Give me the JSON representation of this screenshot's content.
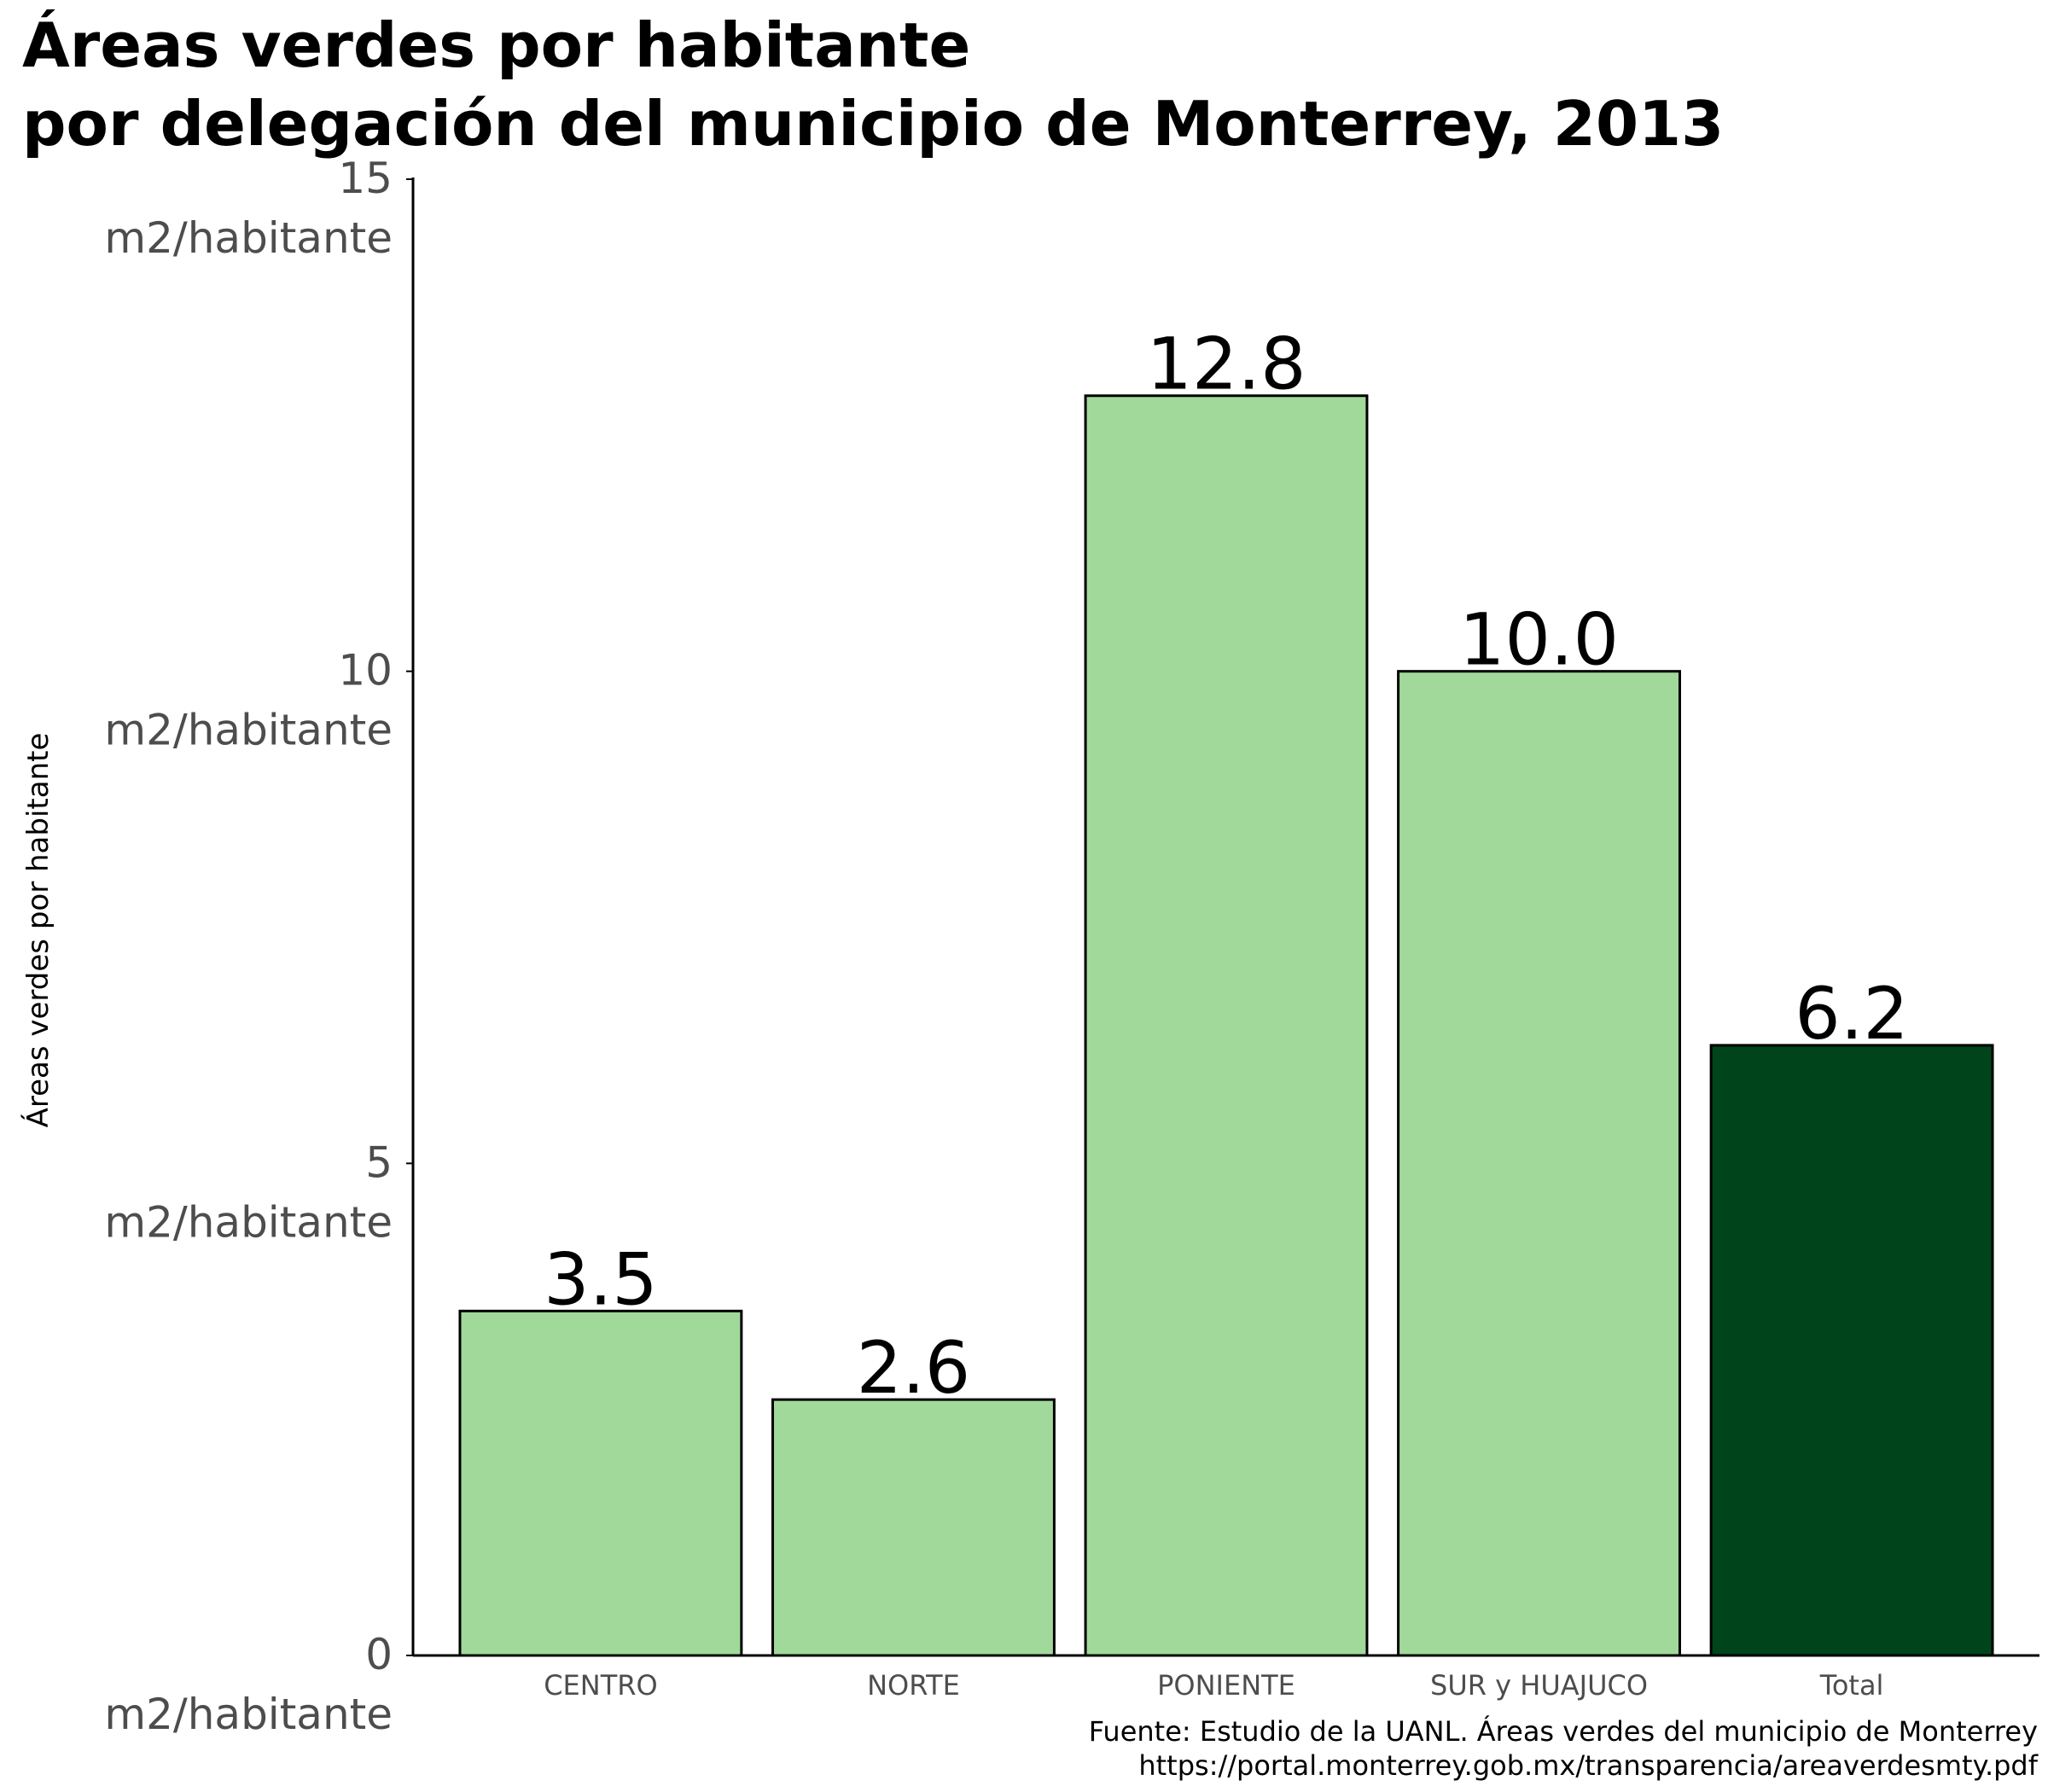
{
  "chart_data": {
    "type": "bar",
    "title_lines": [
      "Áreas verdes por habitante",
      "por delegación del municipio de Monterrey, 2013"
    ],
    "xlabel": "",
    "ylabel": "Áreas verdes por habitante",
    "y_unit": "m2/habitante",
    "ylim": [
      0,
      15
    ],
    "y_ticks": [
      0,
      5,
      10,
      15
    ],
    "categories": [
      "CENTRO",
      "NORTE",
      "PONIENTE",
      "SUR y HUAJUCO",
      "Total"
    ],
    "values": [
      3.5,
      2.6,
      12.8,
      10.0,
      6.2
    ],
    "value_labels": [
      "3.5",
      "2.6",
      "12.8",
      "10.0",
      "6.2"
    ],
    "bar_colors": [
      "#a1d99b",
      "#a1d99b",
      "#a1d99b",
      "#a1d99b",
      "#00441b"
    ],
    "grid": false,
    "caption_lines": [
      "Fuente: Estudio de la UANL. Áreas verdes del municipio de Monterrey",
      "https://portal.monterrey.gob.mx/transparencia/areaverdesmty.pdf"
    ]
  }
}
